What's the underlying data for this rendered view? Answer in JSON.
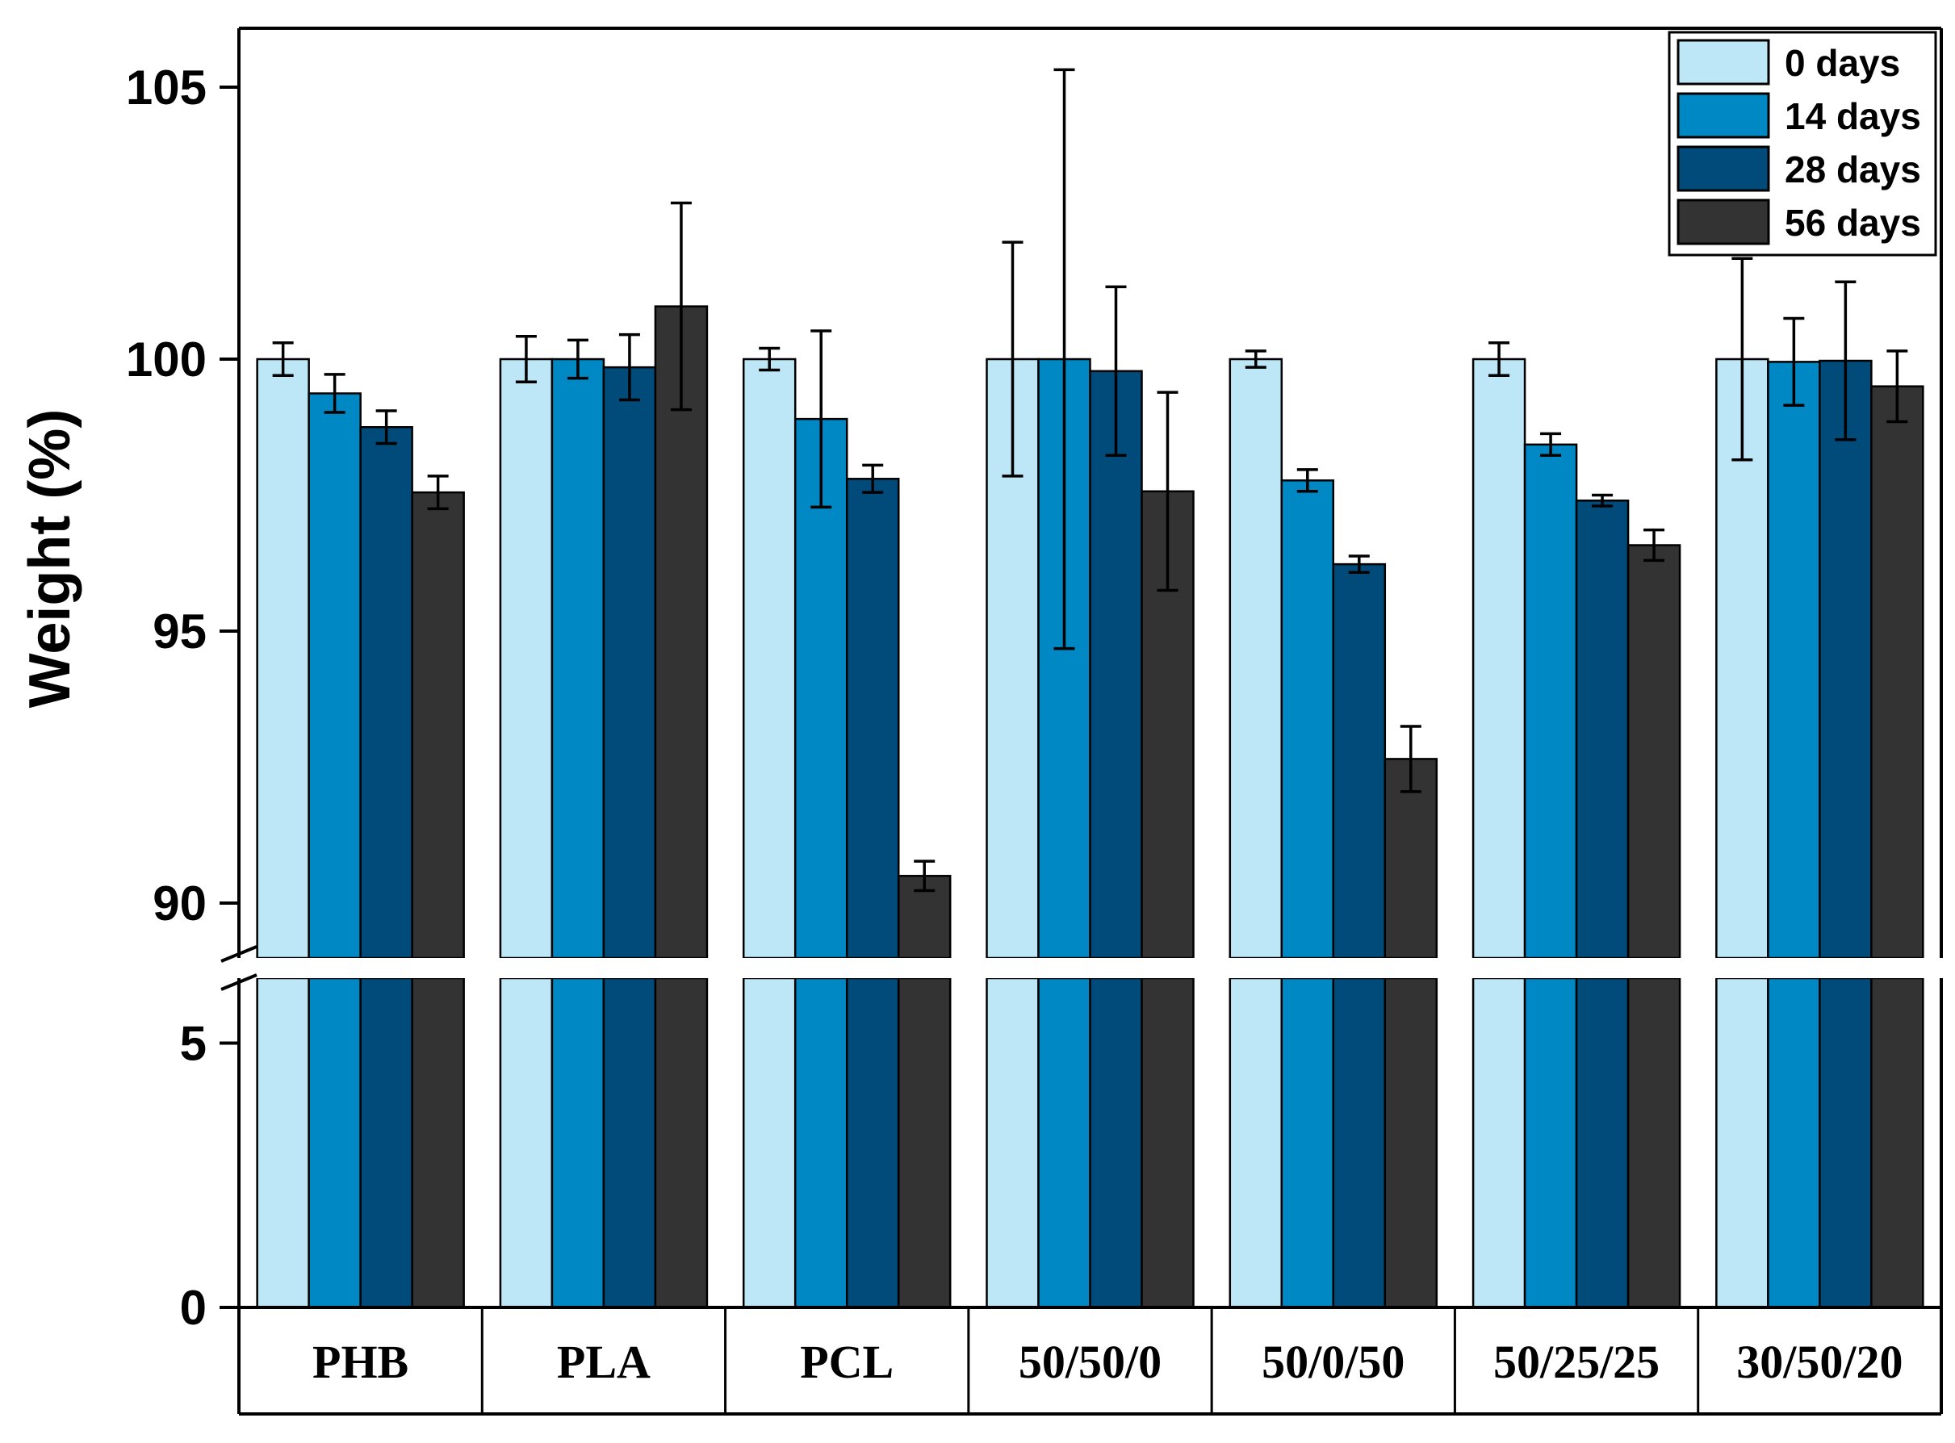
{
  "chart_data": {
    "type": "bar",
    "title": "",
    "xlabel": "",
    "ylabel": "Weight (%)",
    "grid": false,
    "axis_break": {
      "lower_range": [
        0,
        6.2
      ],
      "upper_range": [
        88.9,
        106
      ]
    },
    "ylim": [
      0,
      106
    ],
    "yticks_lower": [
      0,
      5
    ],
    "yticks_upper": [
      90,
      95,
      100,
      105
    ],
    "legend_position": "top-right",
    "categories": [
      "PHB",
      "PLA",
      "PCL",
      "50/50/0",
      "50/0/50",
      "50/25/25",
      "30/50/20"
    ],
    "series": [
      {
        "name": "0 days",
        "color": "#bde6f6",
        "values": [
          100.0,
          100.0,
          100.0,
          100.0,
          100.0,
          100.0,
          100.0
        ],
        "errors": [
          0.3,
          0.42,
          0.2,
          2.15,
          0.15,
          0.3,
          1.85
        ]
      },
      {
        "name": "14 days",
        "color": "#0088c4",
        "values": [
          99.37,
          100.0,
          98.9,
          100.0,
          97.77,
          98.43,
          99.95
        ],
        "errors": [
          0.35,
          0.35,
          1.62,
          5.32,
          0.2,
          0.2,
          0.8
        ]
      },
      {
        "name": "28 days",
        "color": "#004b7a",
        "values": [
          98.75,
          99.85,
          97.8,
          99.78,
          96.23,
          97.4,
          99.97
        ],
        "errors": [
          0.3,
          0.6,
          0.25,
          1.55,
          0.15,
          0.1,
          1.45
        ]
      },
      {
        "name": "56 days",
        "color": "#333333",
        "values": [
          97.55,
          100.97,
          90.5,
          97.57,
          92.65,
          96.58,
          99.5
        ],
        "errors": [
          0.3,
          1.9,
          0.27,
          1.82,
          0.6,
          0.28,
          0.65
        ]
      }
    ]
  }
}
